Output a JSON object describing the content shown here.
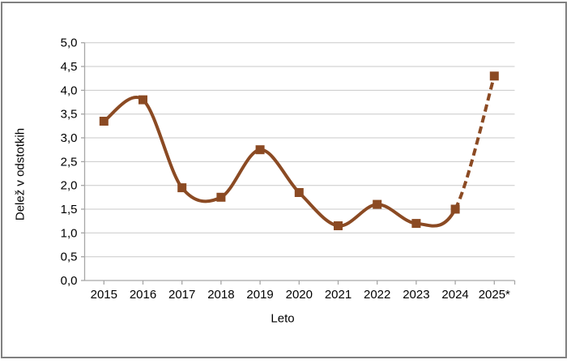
{
  "frame": {
    "background": "#FFFFFF",
    "border_color": "#808080"
  },
  "chart_data": {
    "type": "line",
    "title": "",
    "xlabel": "Leto",
    "ylabel": "Delež v odstotkih",
    "categories": [
      "2015",
      "2016",
      "2017",
      "2018",
      "2019",
      "2020",
      "2021",
      "2022",
      "2023",
      "2024",
      "2025*"
    ],
    "series": [
      {
        "name": "Delež v odstotkih",
        "values": [
          3.35,
          3.8,
          1.95,
          1.75,
          2.75,
          1.85,
          1.15,
          1.6,
          1.2,
          1.5,
          4.3
        ],
        "color": "#8B4A23",
        "marker": "square",
        "smooth": true,
        "dashed_segment_start_index": 9
      }
    ],
    "ylim": [
      0,
      5
    ],
    "ytick_step": 0.5,
    "ytick_labels": [
      "0,0",
      "0,5",
      "1,0",
      "1,5",
      "2,0",
      "2,5",
      "3,0",
      "3,5",
      "4,0",
      "4,5",
      "5,0"
    ],
    "decimal_separator": ",",
    "grid": true,
    "legend_position": "none"
  },
  "colors": {
    "series": "#8B4A23",
    "gridline": "#C9C9C9",
    "axis": "#A6A6A6",
    "text": "#000000",
    "frame_border": "#808080"
  }
}
